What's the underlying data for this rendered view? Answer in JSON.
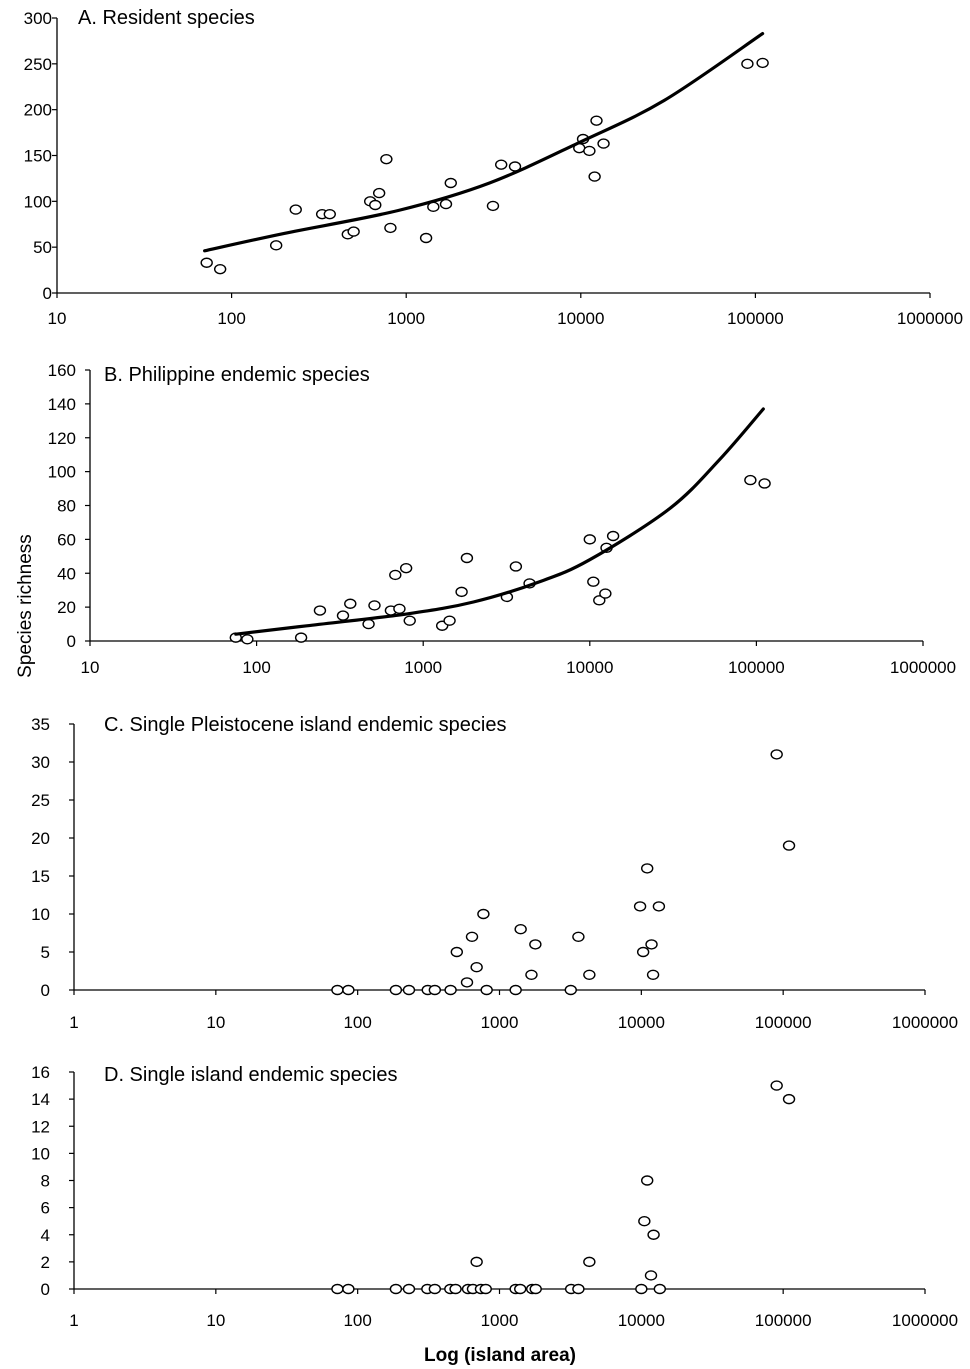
{
  "figure": {
    "ylabel": "Species richness",
    "xlabel": "Log (island area)"
  },
  "chart_data": [
    {
      "type": "scatter",
      "title": "A. Resident species",
      "xscale": "log",
      "xlim": [
        10,
        1000000
      ],
      "ylim": [
        0,
        300
      ],
      "x_ticks": [
        10,
        100,
        1000,
        10000,
        100000,
        1000000
      ],
      "x_tick_labels": [
        "10",
        "100",
        "1000",
        "10000",
        "100000",
        "1000000"
      ],
      "y_ticks": [
        0,
        50,
        100,
        150,
        200,
        250,
        300
      ],
      "y_tick_labels": [
        "0",
        "50",
        "100",
        "150",
        "200",
        "250",
        "300"
      ],
      "grid": false,
      "series": [
        {
          "kind": "points",
          "marker": "open-circle",
          "x": [
            72,
            86,
            180,
            233,
            330,
            365,
            463,
            500,
            622,
            665,
            700,
            770,
            812,
            1300,
            1430,
            1690,
            1800,
            3140,
            3500,
            4200,
            9800,
            10300,
            11200,
            12000,
            12300,
            13500,
            90000,
            110000
          ],
          "y": [
            33,
            26,
            52,
            91,
            86,
            86,
            64,
            67,
            100,
            96,
            109,
            146,
            71,
            60,
            94,
            97,
            120,
            95,
            140,
            138,
            158,
            168,
            155,
            127,
            188,
            163,
            250,
            251
          ]
        },
        {
          "kind": "fit-line",
          "x": [
            70,
            200,
            900,
            3000,
            10000,
            30000,
            110000
          ],
          "y": [
            46,
            65,
            90,
            120,
            165,
            210,
            283
          ]
        }
      ]
    },
    {
      "type": "scatter",
      "title": "B. Philippine endemic species",
      "xscale": "log",
      "xlim": [
        10,
        1000000
      ],
      "ylim": [
        0,
        160
      ],
      "x_ticks": [
        10,
        100,
        1000,
        10000,
        100000,
        1000000
      ],
      "x_tick_labels": [
        "10",
        "100",
        "1000",
        "10000",
        "100000",
        "1000000"
      ],
      "y_ticks": [
        0,
        20,
        40,
        60,
        80,
        100,
        120,
        140,
        160
      ],
      "y_tick_labels": [
        "0",
        "20",
        "40",
        "60",
        "80",
        "100",
        "120",
        "140",
        "160"
      ],
      "grid": false,
      "series": [
        {
          "kind": "points",
          "marker": "open-circle",
          "x": [
            75,
            88,
            185,
            240,
            330,
            365,
            470,
            510,
            640,
            680,
            720,
            790,
            830,
            1300,
            1440,
            1700,
            1830,
            3180,
            3600,
            4350,
            10000,
            10500,
            11400,
            12400,
            12600,
            13800,
            92000,
            112000
          ],
          "y": [
            2,
            1,
            2,
            18,
            15,
            22,
            10,
            21,
            18,
            39,
            19,
            43,
            12,
            9,
            12,
            29,
            49,
            26,
            44,
            34,
            60,
            35,
            24,
            28,
            55,
            62,
            95,
            93
          ]
        },
        {
          "kind": "fit-line",
          "x": [
            75,
            200,
            800,
            2000,
            5000,
            10000,
            30000,
            60000,
            110000
          ],
          "y": [
            4,
            9,
            16,
            23,
            35,
            48,
            78,
            107,
            137
          ]
        }
      ]
    },
    {
      "type": "scatter",
      "title": "C. Single Pleistocene island endemic species",
      "xscale": "log",
      "xlim": [
        1,
        1000000
      ],
      "ylim": [
        0,
        35
      ],
      "x_ticks": [
        1,
        10,
        100,
        1000,
        10000,
        100000,
        1000000
      ],
      "x_tick_labels": [
        "1",
        "10",
        "100",
        "1000",
        "10000",
        "100000",
        "1000000"
      ],
      "y_ticks": [
        0,
        5,
        10,
        15,
        20,
        25,
        30,
        35
      ],
      "y_tick_labels": [
        "0",
        "5",
        "10",
        "15",
        "20",
        "25",
        "30",
        "35"
      ],
      "grid": false,
      "series": [
        {
          "kind": "points",
          "marker": "open-circle",
          "x": [
            72,
            86,
            186,
            230,
            312,
            350,
            452,
            500,
            590,
            640,
            690,
            770,
            812,
            1300,
            1410,
            1680,
            1790,
            3180,
            3600,
            4300,
            9800,
            10300,
            11000,
            11800,
            12100,
            13300,
            90000,
            110000
          ],
          "y": [
            0,
            0,
            0,
            0,
            0,
            0,
            0,
            5,
            1,
            7,
            3,
            10,
            0,
            0,
            8,
            2,
            6,
            0,
            7,
            2,
            11,
            5,
            16,
            6,
            2,
            11,
            31,
            19
          ]
        }
      ]
    },
    {
      "type": "scatter",
      "title": "D. Single island endemic species",
      "xscale": "log",
      "xlim": [
        1,
        1000000
      ],
      "ylim": [
        0,
        16
      ],
      "x_ticks": [
        1,
        10,
        100,
        1000,
        10000,
        100000,
        1000000
      ],
      "x_tick_labels": [
        "1",
        "10",
        "100",
        "1000",
        "10000",
        "100000",
        "1000000"
      ],
      "y_ticks": [
        0,
        2,
        4,
        6,
        8,
        10,
        12,
        14,
        16
      ],
      "y_tick_labels": [
        "0",
        "2",
        "4",
        "6",
        "8",
        "10",
        "12",
        "14",
        "16"
      ],
      "grid": false,
      "series": [
        {
          "kind": "points",
          "marker": "open-circle",
          "x": [
            72,
            86,
            186,
            230,
            310,
            350,
            450,
            490,
            600,
            650,
            690,
            740,
            800,
            1300,
            1400,
            1700,
            1800,
            3200,
            3600,
            4300,
            10000,
            10500,
            11000,
            11700,
            12200,
            13500,
            90000,
            110000
          ],
          "y": [
            0,
            0,
            0,
            0,
            0,
            0,
            0,
            0,
            0,
            0,
            2,
            0,
            0,
            0,
            0,
            0,
            0,
            0,
            0,
            2,
            0,
            5,
            8,
            1,
            4,
            0,
            15,
            14
          ]
        }
      ]
    }
  ]
}
